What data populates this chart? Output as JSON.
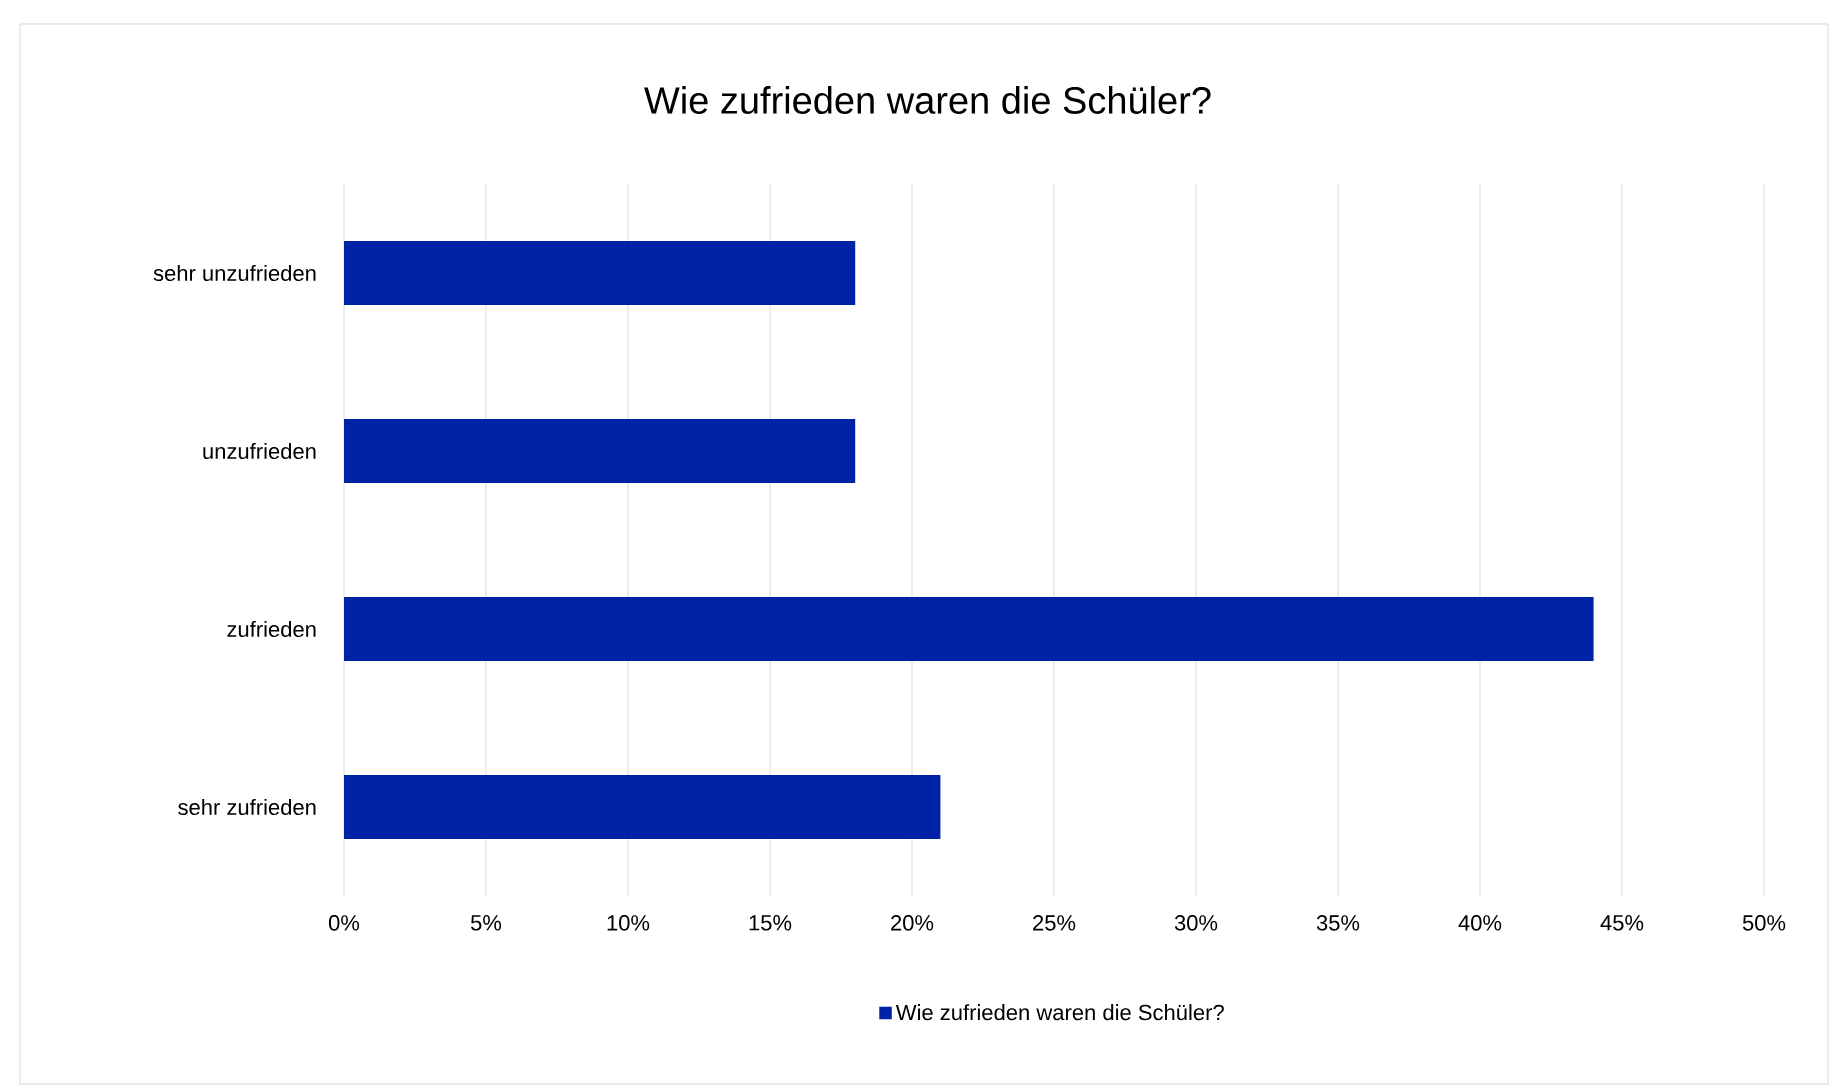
{
  "chart_data": {
    "type": "bar",
    "orientation": "horizontal",
    "title": "Wie zufrieden waren die Schüler?",
    "categories": [
      "sehr unzufrieden",
      "unzufrieden",
      "zufrieden",
      "sehr zufrieden"
    ],
    "series": [
      {
        "name": "Wie zufrieden waren die Schüler?",
        "color": "#0022a6",
        "values": [
          18,
          18,
          44,
          21
        ]
      }
    ],
    "xlim": [
      0,
      50
    ],
    "xticks": [
      {
        "value": 0,
        "label": "0%"
      },
      {
        "value": 5,
        "label": "5%"
      },
      {
        "value": 10,
        "label": "10%"
      },
      {
        "value": 15,
        "label": "15%"
      },
      {
        "value": 20,
        "label": "20%"
      },
      {
        "value": 25,
        "label": "25%"
      },
      {
        "value": 30,
        "label": "30%"
      },
      {
        "value": 35,
        "label": "35%"
      },
      {
        "value": 40,
        "label": "40%"
      },
      {
        "value": 45,
        "label": "45%"
      },
      {
        "value": 50,
        "label": "50%"
      }
    ],
    "grid": "x",
    "legend": "bottom"
  }
}
